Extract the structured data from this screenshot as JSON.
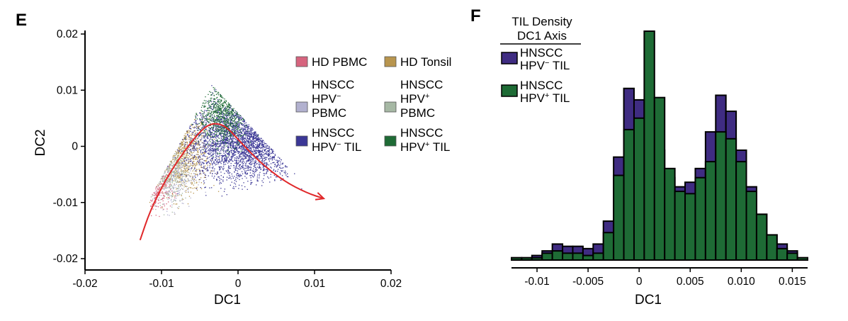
{
  "chart_data": [
    {
      "panel": "E",
      "type": "scatter",
      "xlabel": "DC1",
      "ylabel": "DC2",
      "xlim": [
        -0.02,
        0.02
      ],
      "ylim": [
        -0.02,
        0.02
      ],
      "x_ticks": [
        -0.02,
        -0.01,
        0,
        0.01,
        0.02
      ],
      "x_tick_labels": [
        "-0.02",
        "-0.01",
        "0",
        "0.01",
        "0.02"
      ],
      "y_ticks": [
        0.02,
        0.01,
        0,
        -0.01,
        -0.02
      ],
      "y_tick_labels": [
        "0.02",
        "0.01",
        "0",
        "-0.01",
        "-0.02"
      ],
      "series": [
        {
          "name": "HD PBMC",
          "label_lines": [
            "HD PBMC"
          ],
          "color": "#d6647e"
        },
        {
          "name": "HD Tonsil",
          "label_lines": [
            "HD Tonsil"
          ],
          "color": "#b8954e"
        },
        {
          "name": "HNSCC HPV− PBMC",
          "label_lines": [
            "HNSCC",
            "HPV−",
            "PBMC"
          ],
          "color": "#b2b1cf"
        },
        {
          "name": "HNSCC HPV+ PBMC",
          "label_lines": [
            "HNSCC",
            "HPV+",
            "PBMC"
          ],
          "color": "#a6b8a4"
        },
        {
          "name": "HNSCC HPV− TIL",
          "label_lines": [
            "HNSCC",
            "HPV− TIL"
          ],
          "color": "#3b3796"
        },
        {
          "name": "HNSCC HPV+ TIL",
          "label_lines": [
            "HNSCC",
            "HPV+ TIL"
          ],
          "color": "#1e6b35"
        }
      ],
      "clouds": [
        {
          "series": "HD Tonsil",
          "center": [
            -0.0075,
            -0.001
          ],
          "spread": [
            0.0018,
            0.0035
          ],
          "count": 700,
          "color": "#b8954e"
        },
        {
          "series": "HD PBMC",
          "center": [
            -0.0105,
            -0.0075
          ],
          "spread": [
            0.0008,
            0.0022
          ],
          "count": 150,
          "color": "#d6647e"
        },
        {
          "series": "HNSCC HPV− PBMC",
          "center": [
            -0.0085,
            -0.005
          ],
          "spread": [
            0.0015,
            0.003
          ],
          "count": 250,
          "color": "#b2b1cf"
        },
        {
          "series": "HNSCC HPV+ PBMC",
          "center": [
            -0.009,
            -0.004
          ],
          "spread": [
            0.0012,
            0.003
          ],
          "count": 250,
          "color": "#a6b8a4"
        },
        {
          "series": "HNSCC HPV− TIL",
          "center": [
            0.001,
            0.001
          ],
          "spread": [
            0.004,
            0.0035
          ],
          "count": 2600,
          "color": "#3b3796"
        },
        {
          "series": "HNSCC HPV+ TIL",
          "center": [
            -0.002,
            0.006
          ],
          "spread": [
            0.0015,
            0.003
          ],
          "count": 700,
          "color": "#1e6b35"
        }
      ],
      "trajectory": {
        "color": "#e0282a",
        "x": [
          -0.0128,
          -0.0115,
          -0.0095,
          -0.0075,
          -0.0058,
          -0.0043,
          -0.003,
          -0.0015,
          0.0005,
          0.003,
          0.006,
          0.009,
          0.0112
        ],
        "y": [
          -0.0167,
          -0.0115,
          -0.006,
          -0.0018,
          0.0013,
          0.0035,
          0.0042,
          0.0035,
          0.0005,
          -0.003,
          -0.0062,
          -0.0083,
          -0.0093
        ]
      }
    },
    {
      "panel": "F",
      "type": "bar",
      "xlabel": "DC1",
      "legend_title_lines": [
        "TIL Density",
        "DC1 Axis"
      ],
      "x_ticks": [
        -0.01,
        -0.005,
        0,
        0.005,
        0.01,
        0.015
      ],
      "x_tick_labels": [
        "-0.01",
        "-0.005",
        "0",
        "0.005",
        "0.010",
        "0.015"
      ],
      "bin_width": 0.001,
      "bin_start": -0.0125,
      "series": [
        {
          "name": "HNSCC HPV− TIL",
          "label_lines": [
            "HNSCC",
            "HPV− TIL"
          ],
          "color": "#3f2c82",
          "values": [
            1,
            1,
            2,
            4,
            7,
            6,
            6,
            5,
            7,
            17,
            45,
            75,
            70,
            70,
            48,
            36,
            32,
            34,
            40,
            56,
            72,
            65,
            48,
            32,
            20,
            11,
            7,
            4,
            1
          ]
        },
        {
          "name": "HNSCC HPV+ TIL",
          "label_lines": [
            "HNSCC",
            "HPV+ TIL"
          ],
          "color": "#1e6b35",
          "values": [
            1,
            1,
            1,
            3,
            4,
            3,
            3,
            2,
            3,
            12,
            37,
            57,
            62,
            100,
            71,
            40,
            30,
            29,
            36,
            43,
            56,
            53,
            43,
            30,
            20,
            11,
            5,
            3,
            1
          ]
        }
      ]
    }
  ]
}
